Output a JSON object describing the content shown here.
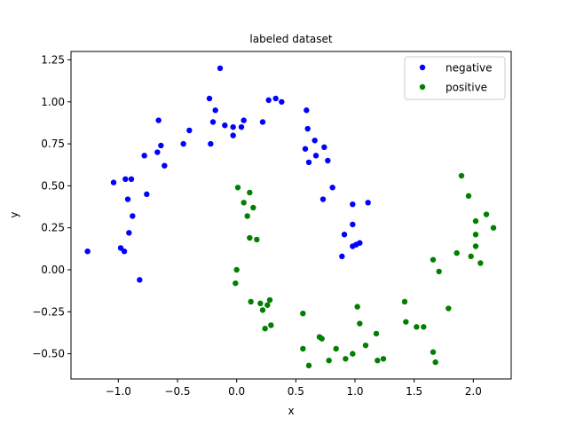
{
  "chart_data": {
    "type": "scatter",
    "title": "labeled dataset",
    "xlabel": "x",
    "ylabel": "y",
    "xlim": [
      -1.4,
      2.32
    ],
    "ylim": [
      -0.65,
      1.3
    ],
    "xticks": [
      -1.0,
      -0.5,
      0.0,
      0.5,
      1.0,
      1.5,
      2.0
    ],
    "xtick_labels": [
      "−1.0",
      "−0.5",
      "0.0",
      "0.5",
      "1.0",
      "1.5",
      "2.0"
    ],
    "yticks": [
      -0.5,
      -0.25,
      0.0,
      0.25,
      0.5,
      0.75,
      1.0,
      1.25
    ],
    "ytick_labels": [
      "−0.50",
      "−0.25",
      "0.00",
      "0.25",
      "0.50",
      "0.75",
      "1.00",
      "1.25"
    ],
    "grid": false,
    "legend_position": "top-right",
    "series": [
      {
        "name": "negative",
        "color": "#0000ff",
        "points": [
          [
            -1.26,
            0.11
          ],
          [
            -1.04,
            0.52
          ],
          [
            -0.98,
            0.13
          ],
          [
            -0.95,
            0.11
          ],
          [
            -0.94,
            0.54
          ],
          [
            -0.92,
            0.42
          ],
          [
            -0.91,
            0.22
          ],
          [
            -0.89,
            0.54
          ],
          [
            -0.88,
            0.32
          ],
          [
            -0.82,
            -0.06
          ],
          [
            -0.78,
            0.68
          ],
          [
            -0.76,
            0.45
          ],
          [
            -0.67,
            0.7
          ],
          [
            -0.66,
            0.89
          ],
          [
            -0.64,
            0.74
          ],
          [
            -0.61,
            0.62
          ],
          [
            -0.45,
            0.75
          ],
          [
            -0.4,
            0.83
          ],
          [
            -0.23,
            1.02
          ],
          [
            -0.22,
            0.75
          ],
          [
            -0.2,
            0.88
          ],
          [
            -0.18,
            0.95
          ],
          [
            -0.14,
            1.2
          ],
          [
            -0.1,
            0.86
          ],
          [
            -0.03,
            0.8
          ],
          [
            -0.03,
            0.85
          ],
          [
            0.04,
            0.85
          ],
          [
            0.06,
            0.89
          ],
          [
            0.22,
            0.88
          ],
          [
            0.27,
            1.01
          ],
          [
            0.33,
            1.02
          ],
          [
            0.38,
            1.0
          ],
          [
            0.58,
            0.72
          ],
          [
            0.59,
            0.95
          ],
          [
            0.6,
            0.84
          ],
          [
            0.61,
            0.64
          ],
          [
            0.66,
            0.77
          ],
          [
            0.67,
            0.68
          ],
          [
            0.73,
            0.42
          ],
          [
            0.74,
            0.73
          ],
          [
            0.77,
            0.65
          ],
          [
            0.81,
            0.49
          ],
          [
            0.89,
            0.08
          ],
          [
            0.91,
            0.21
          ],
          [
            0.98,
            0.39
          ],
          [
            0.98,
            0.27
          ],
          [
            0.98,
            0.14
          ],
          [
            1.01,
            0.15
          ],
          [
            1.04,
            0.16
          ],
          [
            1.11,
            0.4
          ]
        ]
      },
      {
        "name": "positive",
        "color": "#008000",
        "points": [
          [
            -0.01,
            -0.08
          ],
          [
            0.0,
            0.0
          ],
          [
            0.01,
            0.49
          ],
          [
            0.06,
            0.4
          ],
          [
            0.09,
            0.32
          ],
          [
            0.11,
            0.46
          ],
          [
            0.11,
            0.19
          ],
          [
            0.12,
            -0.19
          ],
          [
            0.14,
            0.37
          ],
          [
            0.17,
            0.18
          ],
          [
            0.2,
            -0.2
          ],
          [
            0.22,
            -0.24
          ],
          [
            0.24,
            -0.35
          ],
          [
            0.26,
            -0.21
          ],
          [
            0.28,
            -0.18
          ],
          [
            0.29,
            -0.33
          ],
          [
            0.56,
            -0.26
          ],
          [
            0.56,
            -0.47
          ],
          [
            0.61,
            -0.57
          ],
          [
            0.7,
            -0.4
          ],
          [
            0.72,
            -0.41
          ],
          [
            0.78,
            -0.54
          ],
          [
            0.84,
            -0.47
          ],
          [
            0.92,
            -0.53
          ],
          [
            0.98,
            -0.5
          ],
          [
            1.02,
            -0.22
          ],
          [
            1.04,
            -0.32
          ],
          [
            1.09,
            -0.45
          ],
          [
            1.18,
            -0.38
          ],
          [
            1.19,
            -0.54
          ],
          [
            1.24,
            -0.53
          ],
          [
            1.42,
            -0.19
          ],
          [
            1.43,
            -0.31
          ],
          [
            1.52,
            -0.34
          ],
          [
            1.58,
            -0.34
          ],
          [
            1.66,
            0.06
          ],
          [
            1.66,
            -0.49
          ],
          [
            1.68,
            -0.55
          ],
          [
            1.71,
            -0.01
          ],
          [
            1.79,
            -0.23
          ],
          [
            1.86,
            0.1
          ],
          [
            1.9,
            0.56
          ],
          [
            1.96,
            0.44
          ],
          [
            1.98,
            0.08
          ],
          [
            2.02,
            0.29
          ],
          [
            2.02,
            0.21
          ],
          [
            2.02,
            0.14
          ],
          [
            2.06,
            0.04
          ],
          [
            2.11,
            0.33
          ],
          [
            2.17,
            0.25
          ]
        ]
      }
    ]
  }
}
